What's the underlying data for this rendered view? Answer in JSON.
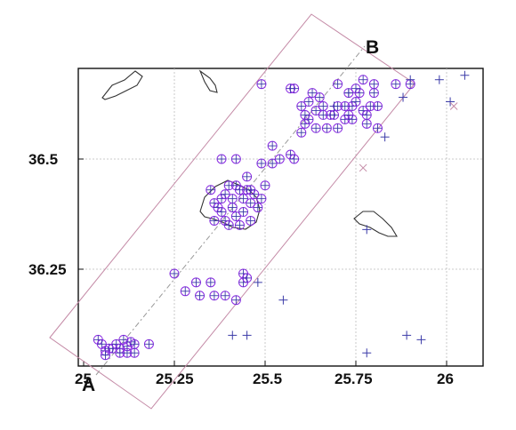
{
  "chart_data": {
    "type": "scatter",
    "title": "",
    "xlabel": "",
    "ylabel": "",
    "xlim": [
      24.99,
      26.12
    ],
    "ylim": [
      36.045,
      36.705
    ],
    "grid": true,
    "x_ticks": [
      {
        "value": 25.0,
        "label": "25"
      },
      {
        "value": 25.25,
        "label": "25.25"
      },
      {
        "value": 25.5,
        "label": "25.5"
      },
      {
        "value": 25.75,
        "label": "25.75"
      },
      {
        "value": 26.0,
        "label": "26"
      }
    ],
    "y_ticks": [
      {
        "value": 36.25,
        "label": "36.25"
      },
      {
        "value": 36.5,
        "label": "36.5"
      }
    ],
    "profile": {
      "start": {
        "label": "A",
        "x": 25.03,
        "y": 36.055
      },
      "end": {
        "label": "B",
        "x": 25.86,
        "y": 36.705
      }
    },
    "colors": {
      "markers": "#8a2be2",
      "plus": "#3a3aa8",
      "box": "#c48aa6",
      "frame": "#111111",
      "coast": "#333333",
      "grid": "#bbbbbb"
    },
    "series": [
      {
        "marker": "circle-plus",
        "points": [
          [
            25.04,
            36.09
          ],
          [
            25.05,
            36.08
          ],
          [
            25.06,
            36.065
          ],
          [
            25.07,
            36.07
          ],
          [
            25.08,
            36.07
          ],
          [
            25.09,
            36.08
          ],
          [
            25.1,
            36.07
          ],
          [
            25.1,
            36.06
          ],
          [
            25.11,
            36.09
          ],
          [
            25.12,
            36.075
          ],
          [
            25.13,
            36.085
          ],
          [
            25.14,
            36.08
          ],
          [
            25.12,
            36.06
          ],
          [
            25.14,
            36.06
          ],
          [
            25.06,
            36.055
          ],
          [
            25.18,
            36.08
          ],
          [
            25.25,
            36.24
          ],
          [
            25.28,
            36.2
          ],
          [
            25.31,
            36.22
          ],
          [
            25.32,
            36.19
          ],
          [
            25.35,
            36.22
          ],
          [
            25.36,
            36.19
          ],
          [
            25.39,
            36.19
          ],
          [
            25.42,
            36.18
          ],
          [
            25.44,
            36.22
          ],
          [
            25.44,
            36.24
          ],
          [
            25.45,
            36.23
          ],
          [
            25.35,
            36.43
          ],
          [
            25.36,
            36.4
          ],
          [
            25.36,
            36.36
          ],
          [
            25.37,
            36.39
          ],
          [
            25.38,
            36.41
          ],
          [
            25.38,
            36.38
          ],
          [
            25.39,
            36.36
          ],
          [
            25.39,
            36.42
          ],
          [
            25.4,
            36.44
          ],
          [
            25.41,
            36.39
          ],
          [
            25.41,
            36.41
          ],
          [
            25.42,
            36.44
          ],
          [
            25.42,
            36.37
          ],
          [
            25.43,
            36.43
          ],
          [
            25.44,
            36.41
          ],
          [
            25.44,
            36.38
          ],
          [
            25.45,
            36.43
          ],
          [
            25.46,
            36.4
          ],
          [
            25.46,
            36.36
          ],
          [
            25.47,
            36.42
          ],
          [
            25.48,
            36.39
          ],
          [
            25.43,
            36.35
          ],
          [
            25.4,
            36.35
          ],
          [
            25.49,
            36.41
          ],
          [
            25.38,
            36.5
          ],
          [
            25.42,
            36.5
          ],
          [
            25.45,
            36.46
          ],
          [
            25.46,
            36.43
          ],
          [
            25.49,
            36.49
          ],
          [
            25.5,
            36.44
          ],
          [
            25.52,
            36.49
          ],
          [
            25.52,
            36.53
          ],
          [
            25.54,
            36.5
          ],
          [
            25.57,
            36.51
          ],
          [
            25.58,
            36.5
          ],
          [
            25.6,
            36.56
          ],
          [
            25.61,
            36.58
          ],
          [
            25.62,
            36.59
          ],
          [
            25.64,
            36.57
          ],
          [
            25.64,
            36.61
          ],
          [
            25.65,
            36.64
          ],
          [
            25.66,
            36.6
          ],
          [
            25.66,
            36.62
          ],
          [
            25.67,
            36.57
          ],
          [
            25.68,
            36.6
          ],
          [
            25.69,
            36.6
          ],
          [
            25.7,
            36.57
          ],
          [
            25.7,
            36.62
          ],
          [
            25.72,
            36.59
          ],
          [
            25.72,
            36.62
          ],
          [
            25.73,
            36.6
          ],
          [
            25.74,
            36.62
          ],
          [
            25.74,
            36.59
          ],
          [
            25.75,
            36.63
          ],
          [
            25.76,
            36.65
          ],
          [
            25.77,
            36.61
          ],
          [
            25.78,
            36.6
          ],
          [
            25.78,
            36.58
          ],
          [
            25.79,
            36.62
          ],
          [
            25.8,
            36.65
          ],
          [
            25.81,
            36.62
          ],
          [
            25.81,
            36.57
          ],
          [
            25.63,
            36.65
          ],
          [
            25.62,
            36.63
          ],
          [
            25.49,
            36.67
          ],
          [
            25.58,
            36.66
          ],
          [
            25.6,
            36.62
          ],
          [
            25.61,
            36.6
          ],
          [
            25.57,
            36.66
          ],
          [
            25.7,
            36.67
          ],
          [
            25.73,
            36.65
          ],
          [
            25.75,
            36.66
          ],
          [
            25.77,
            36.68
          ],
          [
            25.8,
            36.67
          ],
          [
            25.86,
            36.67
          ],
          [
            25.9,
            36.67
          ]
        ]
      },
      {
        "marker": "plus",
        "points": [
          [
            25.41,
            36.1
          ],
          [
            25.45,
            36.1
          ],
          [
            25.48,
            36.22
          ],
          [
            25.55,
            36.18
          ],
          [
            25.78,
            36.34
          ],
          [
            25.78,
            36.06
          ],
          [
            25.89,
            36.1
          ],
          [
            25.93,
            36.09
          ],
          [
            25.88,
            36.64
          ],
          [
            25.9,
            36.68
          ],
          [
            25.98,
            36.68
          ],
          [
            26.01,
            36.63
          ],
          [
            26.05,
            36.69
          ],
          [
            25.83,
            36.55
          ],
          [
            25.73,
            36.65
          ],
          [
            25.69,
            36.62
          ]
        ]
      },
      {
        "marker": "cross",
        "points": [
          [
            25.77,
            36.48
          ],
          [
            26.02,
            36.62
          ]
        ]
      }
    ]
  }
}
